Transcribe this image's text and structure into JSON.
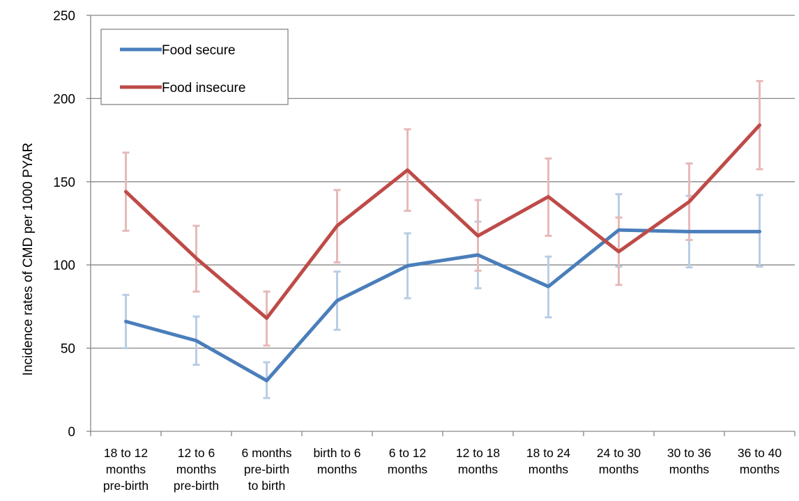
{
  "chart_data": {
    "type": "line",
    "title": "",
    "xlabel": "",
    "ylabel": "Incidence rates of CMD per 1000 PYAR",
    "ylim": [
      0,
      250
    ],
    "yticks": [
      0,
      50,
      100,
      150,
      200,
      250
    ],
    "grid": true,
    "legend_position": "top-left",
    "categories": [
      [
        "18 to 12",
        "months",
        "pre-birth"
      ],
      [
        "12 to 6",
        "months",
        "pre-birth"
      ],
      [
        "6 months",
        "pre-birth",
        "to birth"
      ],
      [
        "birth to 6",
        "months"
      ],
      [
        "6 to 12",
        "months"
      ],
      [
        "12 to 18",
        "months"
      ],
      [
        "18 to 24",
        "months"
      ],
      [
        "24 to 30",
        "months"
      ],
      [
        "30 to 36",
        "months"
      ],
      [
        "36 to 40",
        "months"
      ]
    ],
    "series": [
      {
        "name": "Food secure",
        "color": "#4a7ebb",
        "error_color": "#b9cde5",
        "values": [
          66,
          54.5,
          30.5,
          78.5,
          99.5,
          106,
          87,
          121,
          120,
          120
        ],
        "lower": [
          50,
          40,
          20,
          61,
          80,
          86,
          68.5,
          99,
          98.5,
          99
        ],
        "upper": [
          82,
          69,
          41.5,
          96,
          119,
          126,
          105,
          142.5,
          141.5,
          142
        ]
      },
      {
        "name": "Food insecure",
        "color": "#be4b48",
        "error_color": "#e6b9b8",
        "values": [
          144,
          104,
          68,
          123.5,
          157,
          117.5,
          141,
          108,
          138,
          184
        ],
        "lower": [
          120.5,
          84,
          51.5,
          101.5,
          132.5,
          96.5,
          117.5,
          88,
          115,
          157.5
        ],
        "upper": [
          167.5,
          123.5,
          84,
          145,
          181.5,
          139,
          164,
          128.5,
          161,
          210.5
        ]
      }
    ]
  }
}
